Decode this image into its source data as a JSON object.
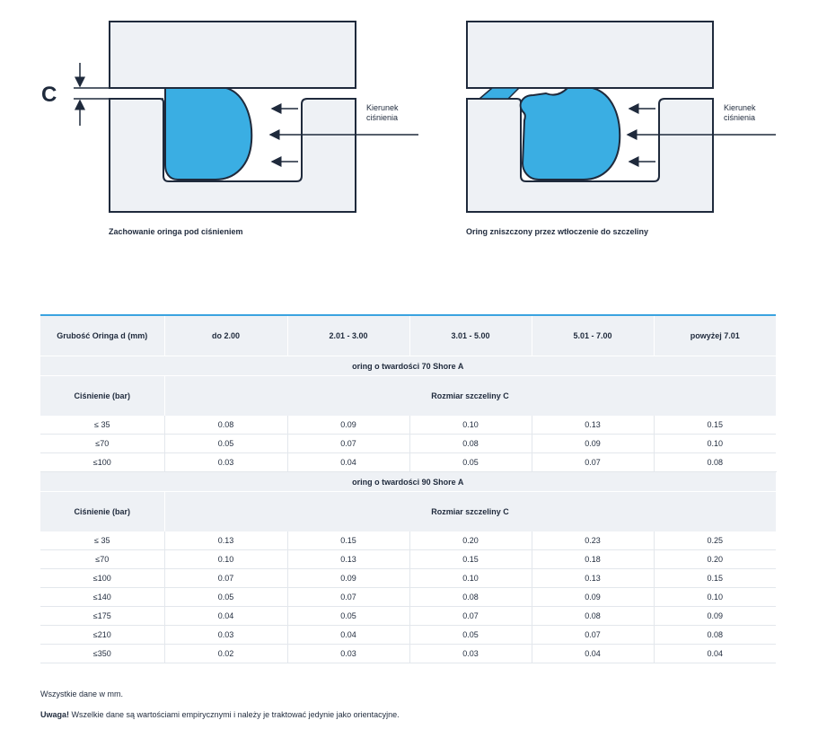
{
  "diagram_left": {
    "c_label": "C",
    "pressure_label_line1": "Kierunek",
    "pressure_label_line2": "ciśnienia",
    "caption": "Zachowanie oringa pod ciśnieniem"
  },
  "diagram_right": {
    "pressure_label_line1": "Kierunek",
    "pressure_label_line2": "ciśnienia",
    "caption": "Oring zniszczony przez wtłoczenie do szczeliny"
  },
  "colors": {
    "oring_fill": "#3aaee3",
    "housing_fill": "#eef1f5",
    "outline": "#1f2a3c",
    "table_accent": "#3aa3e0",
    "table_header_bg": "#eef1f5"
  },
  "table": {
    "header": [
      "Grubość Oringa d (mm)",
      "do 2.00",
      "2.01 - 3.00",
      "3.01 - 5.00",
      "5.01 - 7.00",
      "powyżej 7.01"
    ],
    "sections": [
      {
        "title": "oring o twardości 70 Shore A",
        "pressure_label": "Ciśnienie (bar)",
        "gap_label": "Rozmiar szczeliny C",
        "rows": [
          [
            "≤ 35",
            "0.08",
            "0.09",
            "0.10",
            "0.13",
            "0.15"
          ],
          [
            "≤70",
            "0.05",
            "0.07",
            "0.08",
            "0.09",
            "0.10"
          ],
          [
            "≤100",
            "0.03",
            "0.04",
            "0.05",
            "0.07",
            "0.08"
          ]
        ]
      },
      {
        "title": "oring o twardości 90 Shore A",
        "pressure_label": "Ciśnienie (bar)",
        "gap_label": "Rozmiar szczeliny C",
        "rows": [
          [
            "≤ 35",
            "0.13",
            "0.15",
            "0.20",
            "0.23",
            "0.25"
          ],
          [
            "≤70",
            "0.10",
            "0.13",
            "0.15",
            "0.18",
            "0.20"
          ],
          [
            "≤100",
            "0.07",
            "0.09",
            "0.10",
            "0.13",
            "0.15"
          ],
          [
            "≤140",
            "0.05",
            "0.07",
            "0.08",
            "0.09",
            "0.10"
          ],
          [
            "≤175",
            "0.04",
            "0.05",
            "0.07",
            "0.08",
            "0.09"
          ],
          [
            "≤210",
            "0.03",
            "0.04",
            "0.05",
            "0.07",
            "0.08"
          ],
          [
            "≤350",
            "0.02",
            "0.03",
            "0.03",
            "0.04",
            "0.04"
          ]
        ]
      }
    ]
  },
  "notes": {
    "units": "Wszystkie dane w mm.",
    "warning_label": "Uwaga!",
    "warning_text": " Wszelkie dane są wartościami empirycznymi i należy je traktować jedynie jako orientacyjne."
  }
}
